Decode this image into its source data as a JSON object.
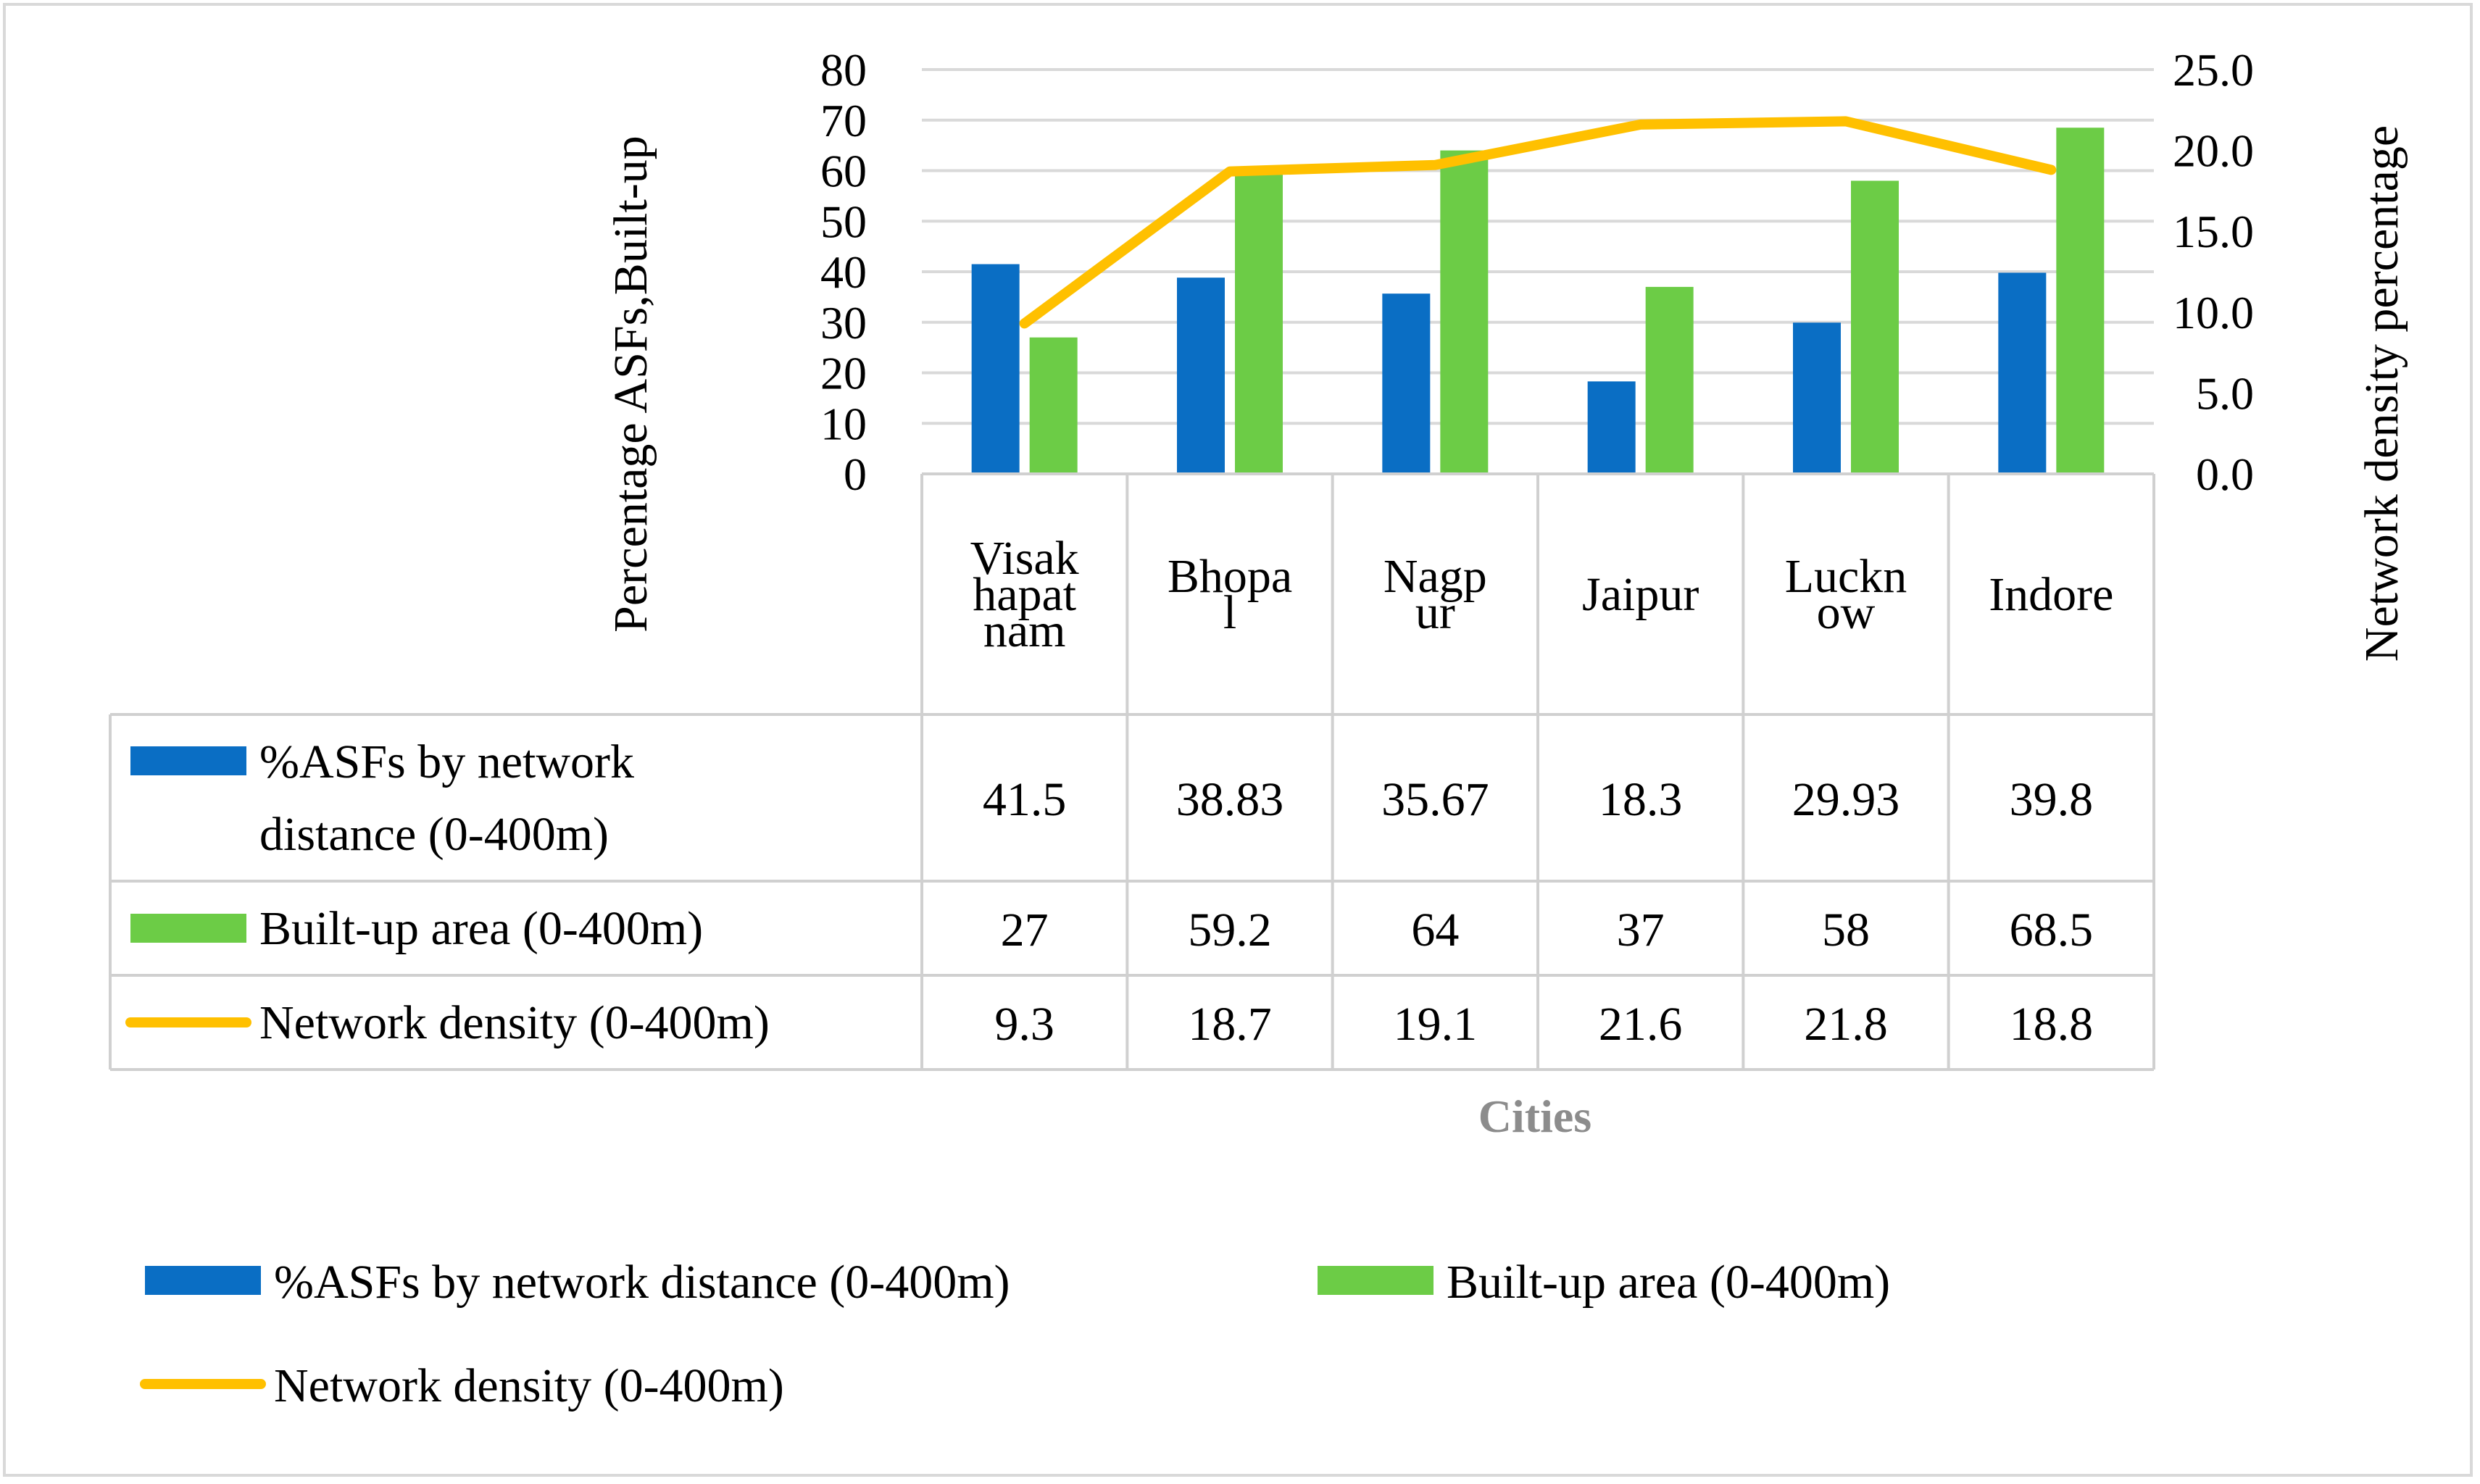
{
  "chart_data": {
    "type": "bar",
    "xlabel": "Cities",
    "categories": [
      "Visakhapatnam",
      "Bhopal",
      "Nagpur",
      "Jaipur",
      "Lucknow",
      "Indore"
    ],
    "category_label_lines": [
      [
        "Visak",
        "hapat",
        "nam"
      ],
      [
        "Bhopa",
        "l"
      ],
      [
        "Nagp",
        "ur"
      ],
      [
        "Jaipur"
      ],
      [
        "Luckn",
        "ow"
      ],
      [
        "Indore"
      ]
    ],
    "ylabel_left": "Percentage  ASFs,Built-up",
    "ylabel_right": "Network  density percentage",
    "ylim_left": [
      0,
      80
    ],
    "ylim_right": [
      0,
      25
    ],
    "yticks_left": [
      "0",
      "10",
      "20",
      "30",
      "40",
      "50",
      "60",
      "70",
      "80"
    ],
    "yticks_right": [
      "0.0",
      "5.0",
      "10.0",
      "15.0",
      "20.0",
      "25.0"
    ],
    "grid": true,
    "data_table": true,
    "series": [
      {
        "name": "%ASFs by network distance  (0-400m)",
        "table_label_lines": [
          "%ASFs by network",
          "distance   (0-400m)"
        ],
        "legend_label": "%ASFs by network distance   (0-400m)",
        "type": "bar",
        "axis": "left",
        "color": "#0a6ec4",
        "values": [
          41.5,
          38.83,
          35.67,
          18.3,
          29.93,
          39.8
        ],
        "labels": [
          "41.5",
          "38.83",
          "35.67",
          "18.3",
          "29.93",
          "39.8"
        ]
      },
      {
        "name": "Built-up area  (0-400m)",
        "table_label_lines": [
          "Built-up area  (0-400m)"
        ],
        "legend_label": "Built-up area  (0-400m)",
        "type": "bar",
        "axis": "left",
        "color": "#6ccc46",
        "values": [
          27,
          59.2,
          64,
          37,
          58,
          68.5
        ],
        "labels": [
          "27",
          "59.2",
          "64",
          "37",
          "58",
          "68.5"
        ]
      },
      {
        "name": "Network density  (0-400m)",
        "table_label_lines": [
          "Network density  (0-400m)"
        ],
        "legend_label": "Network density  (0-400m)",
        "type": "line",
        "axis": "right",
        "color": "#ffc000",
        "values": [
          9.3,
          18.7,
          19.1,
          21.6,
          21.8,
          18.8
        ],
        "labels": [
          "9.3",
          "18.7",
          "19.1",
          "21.6",
          "21.8",
          "18.8"
        ]
      }
    ]
  }
}
